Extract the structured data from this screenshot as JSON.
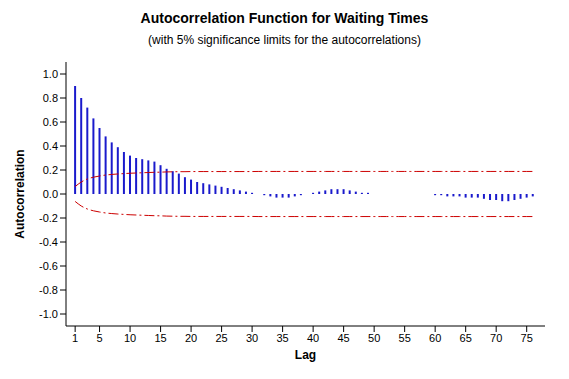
{
  "chart_data": {
    "type": "bar",
    "title": "Autocorrelation Function for Waiting Times",
    "subtitle": "(with 5% significance limits for the autocorrelations)",
    "x_label": "Lag",
    "y_label": "Autocorrelation",
    "x": [
      1,
      2,
      3,
      4,
      5,
      6,
      7,
      8,
      9,
      10,
      11,
      12,
      13,
      14,
      15,
      16,
      17,
      18,
      19,
      20,
      21,
      22,
      23,
      24,
      25,
      26,
      27,
      28,
      29,
      30,
      31,
      32,
      33,
      34,
      35,
      36,
      37,
      38,
      39,
      40,
      41,
      42,
      43,
      44,
      45,
      46,
      47,
      48,
      49,
      50,
      51,
      52,
      53,
      54,
      55,
      56,
      57,
      58,
      59,
      60,
      61,
      62,
      63,
      64,
      65,
      66,
      67,
      68,
      69,
      70,
      71,
      72,
      73,
      74,
      75,
      76
    ],
    "series": [
      {
        "type": "bar",
        "color": "#1a1acc",
        "values": [
          0.9,
          0.8,
          0.72,
          0.63,
          0.55,
          0.48,
          0.43,
          0.39,
          0.35,
          0.32,
          0.3,
          0.29,
          0.28,
          0.27,
          0.24,
          0.21,
          0.19,
          0.17,
          0.14,
          0.12,
          0.1,
          0.09,
          0.08,
          0.07,
          0.06,
          0.05,
          0.04,
          0.03,
          0.02,
          0.01,
          0,
          -0.01,
          -0.02,
          -0.03,
          -0.03,
          -0.03,
          -0.02,
          -0.01,
          0,
          0.01,
          0.02,
          0.03,
          0.04,
          0.04,
          0.04,
          0.03,
          0.02,
          0.01,
          0.01,
          0,
          0,
          0,
          0,
          0,
          0,
          0,
          0,
          0,
          0,
          -0.01,
          -0.01,
          -0.02,
          -0.02,
          -0.02,
          -0.03,
          -0.03,
          -0.03,
          -0.04,
          -0.05,
          -0.05,
          -0.06,
          -0.06,
          -0.05,
          -0.04,
          -0.03,
          -0.02
        ]
      },
      {
        "type": "line",
        "color": "#cc0000",
        "line_style": "dashdot",
        "values": [
          0.062,
          0.1,
          0.125,
          0.14,
          0.15,
          0.158,
          0.163,
          0.167,
          0.17,
          0.173,
          0.175,
          0.177,
          0.179,
          0.181,
          0.182,
          0.184,
          0.185,
          0.186,
          0.186,
          0.187,
          0.187,
          0.187,
          0.187,
          0.187,
          0.187,
          0.187,
          0.187,
          0.187,
          0.187,
          0.187,
          0.188,
          0.188,
          0.188,
          0.188,
          0.188,
          0.188,
          0.188,
          0.188,
          0.188,
          0.188,
          0.188,
          0.188,
          0.188,
          0.188,
          0.188,
          0.188,
          0.188,
          0.188,
          0.188,
          0.188,
          0.188,
          0.188,
          0.188,
          0.188,
          0.188,
          0.188,
          0.188,
          0.188,
          0.188,
          0.188,
          0.188,
          0.188,
          0.188,
          0.188,
          0.188,
          0.188,
          0.188,
          0.188,
          0.188,
          0.188,
          0.188,
          0.188,
          0.188,
          0.188,
          0.188,
          0.188
        ]
      },
      {
        "type": "line",
        "color": "#cc0000",
        "line_style": "dashdot",
        "values": [
          -0.062,
          -0.1,
          -0.125,
          -0.14,
          -0.15,
          -0.158,
          -0.163,
          -0.167,
          -0.17,
          -0.173,
          -0.175,
          -0.177,
          -0.179,
          -0.181,
          -0.182,
          -0.184,
          -0.185,
          -0.186,
          -0.186,
          -0.187,
          -0.187,
          -0.187,
          -0.187,
          -0.187,
          -0.187,
          -0.187,
          -0.187,
          -0.187,
          -0.187,
          -0.187,
          -0.188,
          -0.188,
          -0.188,
          -0.188,
          -0.188,
          -0.188,
          -0.188,
          -0.188,
          -0.188,
          -0.188,
          -0.188,
          -0.188,
          -0.188,
          -0.188,
          -0.188,
          -0.188,
          -0.188,
          -0.188,
          -0.188,
          -0.188,
          -0.188,
          -0.188,
          -0.188,
          -0.188,
          -0.188,
          -0.188,
          -0.188,
          -0.188,
          -0.188,
          -0.188,
          -0.188,
          -0.188,
          -0.188,
          -0.188,
          -0.188,
          -0.188,
          -0.188,
          -0.188,
          -0.188,
          -0.188,
          -0.188,
          -0.188,
          -0.188,
          -0.188,
          -0.188,
          -0.188
        ]
      }
    ],
    "xlim": [
      -0.5,
      78
    ],
    "xticks": [
      1,
      5,
      10,
      15,
      20,
      25,
      30,
      35,
      40,
      45,
      50,
      55,
      60,
      65,
      70,
      75
    ],
    "ylim": [
      -1.1,
      1.1
    ],
    "yticks": [
      {
        "value": -1,
        "label": "-1.0"
      },
      -0.8,
      -0.6,
      -0.4,
      -0.2,
      {
        "value": 0,
        "label": "0.0"
      },
      0.2,
      0.4,
      0.6,
      0.8,
      {
        "value": 1,
        "label": "1.0"
      }
    ],
    "grid": false
  }
}
